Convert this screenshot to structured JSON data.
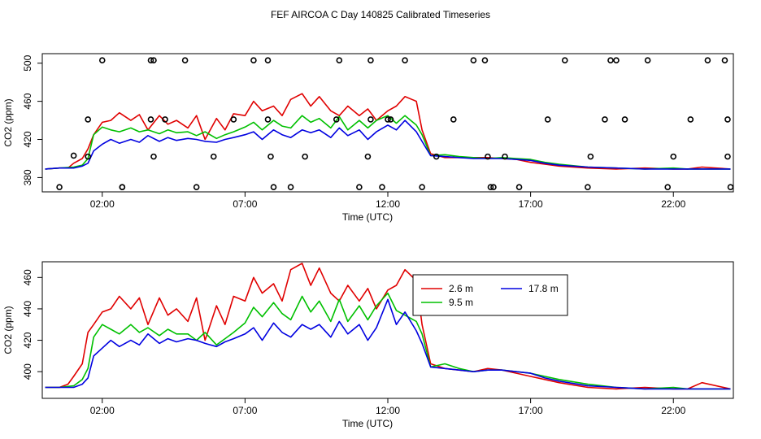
{
  "title": "FEF AIRCOA C  Day 140825  Calibrated Timeseries",
  "chart_data": [
    {
      "type": "line",
      "panel": "top",
      "xlabel": "Time (UTC)",
      "ylabel": "CO2 (ppm)",
      "xticks": [
        {
          "value": 2,
          "label": "02:00"
        },
        {
          "value": 7,
          "label": "07:00"
        },
        {
          "value": 12,
          "label": "12:00"
        },
        {
          "value": 17,
          "label": "17:00"
        },
        {
          "value": 22,
          "label": "22:00"
        }
      ],
      "yticks": [
        {
          "value": 380,
          "label": "380"
        },
        {
          "value": 420,
          "label": "420"
        },
        {
          "value": 460,
          "label": "460"
        },
        {
          "value": 500,
          "label": "500"
        }
      ],
      "xlim": [
        -0.1,
        24.1
      ],
      "ylim": [
        365,
        510
      ],
      "series": [
        {
          "name": "2.6 m",
          "color": "#e00000",
          "x": [
            0,
            0.5,
            0.8,
            1.0,
            1.3,
            1.5,
            1.7,
            2.0,
            2.3,
            2.6,
            3.0,
            3.3,
            3.6,
            4.0,
            4.3,
            4.6,
            5.0,
            5.3,
            5.6,
            6.0,
            6.3,
            6.6,
            7.0,
            7.3,
            7.6,
            8.0,
            8.3,
            8.6,
            9.0,
            9.3,
            9.6,
            10.0,
            10.3,
            10.6,
            11.0,
            11.3,
            11.6,
            12.0,
            12.3,
            12.6,
            13.0,
            13.2,
            13.5,
            14.0,
            14.5,
            15.0,
            15.5,
            16.0,
            16.5,
            17.0,
            17.5,
            18.0,
            19.0,
            20.0,
            21.0,
            22.0,
            22.5,
            23.0,
            24.0
          ],
          "values": [
            389,
            390,
            390,
            395,
            400,
            410,
            425,
            438,
            440,
            448,
            440,
            446,
            430,
            445,
            436,
            440,
            432,
            445,
            420,
            442,
            430,
            447,
            445,
            460,
            450,
            455,
            445,
            462,
            468,
            455,
            465,
            450,
            445,
            455,
            445,
            452,
            440,
            450,
            455,
            465,
            460,
            430,
            405,
            401,
            401,
            401,
            401,
            400,
            399,
            396,
            394,
            392,
            390,
            389,
            390,
            389,
            389,
            391,
            389
          ]
        },
        {
          "name": "9.5 m",
          "color": "#00c000",
          "x": [
            0,
            0.5,
            1.0,
            1.3,
            1.5,
            1.7,
            2.0,
            2.3,
            2.6,
            3.0,
            3.3,
            3.6,
            4.0,
            4.3,
            4.6,
            5.0,
            5.3,
            5.6,
            6.0,
            6.3,
            6.6,
            7.0,
            7.3,
            7.6,
            8.0,
            8.3,
            8.6,
            9.0,
            9.3,
            9.6,
            10.0,
            10.3,
            10.6,
            11.0,
            11.3,
            11.6,
            12.0,
            12.3,
            12.6,
            13.0,
            13.2,
            13.5,
            14.0,
            14.5,
            15.0,
            15.5,
            16.0,
            16.5,
            17.0,
            17.5,
            18.0,
            19.0,
            20.0,
            21.0,
            22.0,
            22.5,
            23.0,
            24.0
          ],
          "values": [
            389,
            390,
            391,
            393,
            400,
            425,
            433,
            430,
            428,
            432,
            428,
            430,
            426,
            430,
            427,
            428,
            424,
            428,
            421,
            425,
            428,
            433,
            438,
            430,
            440,
            434,
            432,
            445,
            438,
            442,
            432,
            444,
            430,
            440,
            432,
            440,
            445,
            437,
            445,
            435,
            425,
            403,
            404,
            402,
            401,
            400,
            401,
            400,
            399,
            396,
            394,
            391,
            390,
            389,
            390,
            389,
            389,
            389
          ]
        },
        {
          "name": "17.8 m",
          "color": "#0000e0",
          "x": [
            0,
            0.5,
            1.0,
            1.3,
            1.5,
            1.7,
            2.0,
            2.3,
            2.6,
            3.0,
            3.3,
            3.6,
            4.0,
            4.3,
            4.6,
            5.0,
            5.3,
            5.6,
            6.0,
            6.3,
            6.6,
            7.0,
            7.3,
            7.6,
            8.0,
            8.3,
            8.6,
            9.0,
            9.3,
            9.6,
            10.0,
            10.3,
            10.6,
            11.0,
            11.3,
            11.6,
            12.0,
            12.3,
            12.6,
            13.0,
            13.2,
            13.5,
            14.0,
            14.5,
            15.0,
            15.5,
            16.0,
            16.5,
            17.0,
            17.5,
            18.0,
            19.0,
            20.0,
            21.0,
            22.0,
            22.5,
            23.0,
            24.0
          ],
          "values": [
            389,
            390,
            390,
            392,
            395,
            408,
            415,
            420,
            416,
            420,
            417,
            424,
            418,
            422,
            419,
            421,
            420,
            418,
            417,
            420,
            422,
            425,
            428,
            420,
            430,
            425,
            422,
            430,
            427,
            430,
            422,
            432,
            424,
            430,
            420,
            428,
            435,
            430,
            440,
            428,
            418,
            403,
            402,
            401,
            400,
            400,
            400,
            399,
            398,
            395,
            393,
            391,
            390,
            389,
            389,
            389,
            389,
            389
          ]
        },
        {
          "name": "markers",
          "color": "#000000",
          "style": "points",
          "x": [
            0.5,
            1.0,
            1.5,
            1.5,
            2.0,
            2.7,
            2.7,
            3.7,
            3.7,
            3.8,
            3.8,
            4.2,
            4.9,
            5.3,
            5.9,
            6.6,
            7.3,
            7.8,
            7.8,
            7.9,
            8.0,
            8.6,
            9.1,
            10.2,
            10.3,
            11.0,
            11.3,
            11.4,
            11.4,
            11.8,
            12.0,
            12.1,
            12.6,
            13.2,
            13.7,
            14.3,
            15.0,
            15.4,
            15.5,
            15.6,
            15.7,
            16.1,
            16.6,
            17.6,
            18.2,
            19.0,
            19.1,
            19.6,
            19.8,
            20.0,
            20.3,
            21.1,
            21.8,
            22.0,
            22.6,
            23.2,
            23.8,
            23.9,
            23.9,
            24.0
          ],
          "values": [
            370,
            403,
            441,
            402,
            503,
            370,
            370,
            441,
            503,
            503,
            402,
            441,
            503,
            370,
            402,
            441,
            503,
            503,
            441,
            402,
            370,
            370,
            402,
            441,
            503,
            370,
            402,
            441,
            503,
            370,
            441,
            441,
            503,
            370,
            402,
            441,
            503,
            503,
            402,
            370,
            370,
            402,
            370,
            441,
            503,
            370,
            402,
            441,
            503,
            503,
            441,
            503,
            370,
            402,
            441,
            503,
            503,
            441,
            402,
            370
          ]
        }
      ]
    },
    {
      "type": "line",
      "panel": "bottom",
      "xlabel": "Time (UTC)",
      "ylabel": "CO2 (ppm)",
      "xticks": [
        {
          "value": 2,
          "label": "02:00"
        },
        {
          "value": 7,
          "label": "07:00"
        },
        {
          "value": 12,
          "label": "12:00"
        },
        {
          "value": 17,
          "label": "17:00"
        },
        {
          "value": 22,
          "label": "22:00"
        }
      ],
      "yticks": [
        {
          "value": 400,
          "label": "400"
        },
        {
          "value": 420,
          "label": "420"
        },
        {
          "value": 440,
          "label": "440"
        },
        {
          "value": 460,
          "label": "460"
        }
      ],
      "xlim": [
        -0.1,
        24.1
      ],
      "ylim": [
        383,
        470
      ],
      "legend": {
        "placement": "top-right",
        "entries": [
          {
            "label": "2.6 m",
            "color": "#e00000"
          },
          {
            "label": "17.8 m",
            "color": "#0000e0"
          },
          {
            "label": "9.5 m",
            "color": "#00c000"
          }
        ]
      },
      "series": [
        {
          "name": "2.6 m",
          "color": "#e00000",
          "x": [
            0,
            0.5,
            0.8,
            1.0,
            1.3,
            1.5,
            1.7,
            2.0,
            2.3,
            2.6,
            3.0,
            3.3,
            3.6,
            4.0,
            4.3,
            4.6,
            5.0,
            5.3,
            5.6,
            6.0,
            6.3,
            6.6,
            7.0,
            7.3,
            7.6,
            8.0,
            8.3,
            8.6,
            9.0,
            9.3,
            9.6,
            10.0,
            10.3,
            10.6,
            11.0,
            11.3,
            11.6,
            12.0,
            12.3,
            12.6,
            13.0,
            13.2,
            13.5,
            14.0,
            14.5,
            15.0,
            15.5,
            16.0,
            16.5,
            17.0,
            17.5,
            18.0,
            19.0,
            20.0,
            21.0,
            22.0,
            22.5,
            23.0,
            24.0
          ],
          "values": [
            390,
            390,
            392,
            397,
            405,
            425,
            430,
            438,
            440,
            448,
            440,
            447,
            430,
            447,
            436,
            440,
            432,
            447,
            420,
            442,
            430,
            448,
            445,
            460,
            450,
            456,
            445,
            465,
            469,
            455,
            466,
            450,
            445,
            455,
            445,
            453,
            440,
            452,
            455,
            465,
            458,
            430,
            405,
            402,
            401,
            400,
            402,
            401,
            399,
            397,
            395,
            393,
            390,
            389,
            390,
            389,
            389,
            393,
            389
          ]
        },
        {
          "name": "9.5 m",
          "color": "#00c000",
          "x": [
            0,
            0.5,
            1.0,
            1.3,
            1.5,
            1.7,
            2.0,
            2.3,
            2.6,
            3.0,
            3.3,
            3.6,
            4.0,
            4.3,
            4.6,
            5.0,
            5.3,
            5.6,
            6.0,
            6.3,
            6.6,
            7.0,
            7.3,
            7.6,
            8.0,
            8.3,
            8.6,
            9.0,
            9.3,
            9.6,
            10.0,
            10.3,
            10.6,
            11.0,
            11.3,
            11.6,
            12.0,
            12.3,
            12.6,
            13.0,
            13.2,
            13.5,
            14.0,
            14.5,
            15.0,
            15.5,
            16.0,
            16.5,
            17.0,
            17.5,
            18.0,
            19.0,
            20.0,
            21.0,
            22.0,
            22.5,
            23.0,
            24.0
          ],
          "values": [
            390,
            390,
            391,
            395,
            402,
            422,
            430,
            427,
            424,
            430,
            425,
            428,
            423,
            427,
            424,
            424,
            420,
            425,
            417,
            421,
            425,
            431,
            441,
            435,
            444,
            437,
            433,
            448,
            438,
            445,
            432,
            446,
            432,
            442,
            433,
            442,
            450,
            439,
            436,
            432,
            424,
            403,
            405,
            402,
            400,
            401,
            401,
            400,
            399,
            397,
            395,
            392,
            390,
            389,
            390,
            389,
            389,
            389
          ]
        },
        {
          "name": "17.8 m",
          "color": "#0000e0",
          "x": [
            0,
            0.5,
            1.0,
            1.3,
            1.5,
            1.7,
            2.0,
            2.3,
            2.6,
            3.0,
            3.3,
            3.6,
            4.0,
            4.3,
            4.6,
            5.0,
            5.3,
            5.6,
            6.0,
            6.3,
            6.6,
            7.0,
            7.3,
            7.6,
            8.0,
            8.3,
            8.6,
            9.0,
            9.3,
            9.6,
            10.0,
            10.3,
            10.6,
            11.0,
            11.3,
            11.6,
            12.0,
            12.3,
            12.6,
            13.0,
            13.2,
            13.5,
            14.0,
            14.5,
            15.0,
            15.5,
            16.0,
            16.5,
            17.0,
            17.5,
            18.0,
            19.0,
            20.0,
            21.0,
            22.0,
            22.5,
            23.0,
            24.0
          ],
          "values": [
            390,
            390,
            390,
            392,
            396,
            410,
            415,
            420,
            416,
            420,
            417,
            424,
            418,
            421,
            419,
            421,
            420,
            418,
            416,
            419,
            421,
            424,
            428,
            420,
            431,
            425,
            422,
            430,
            427,
            430,
            422,
            432,
            424,
            430,
            420,
            428,
            446,
            430,
            438,
            426,
            418,
            403,
            402,
            401,
            400,
            401,
            401,
            400,
            399,
            396,
            394,
            391,
            390,
            389,
            389,
            389,
            389,
            389
          ]
        }
      ]
    }
  ]
}
